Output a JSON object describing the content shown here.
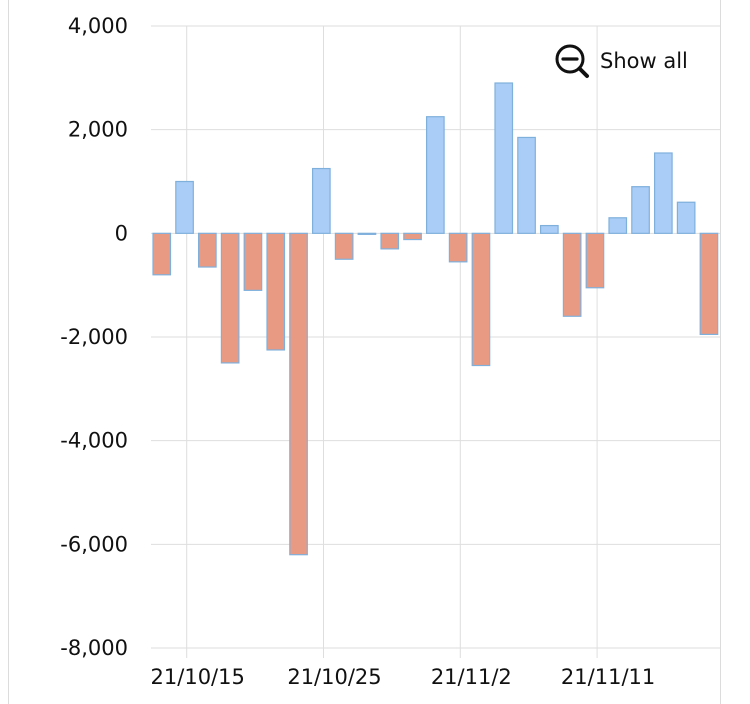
{
  "chart_data": {
    "type": "bar",
    "title": "",
    "xlabel": "",
    "ylabel": "",
    "ylim": [
      -8000,
      4000
    ],
    "y_ticks": [
      4000,
      2000,
      0,
      -2000,
      -4000,
      -6000,
      -8000
    ],
    "y_tick_labels": [
      "4,000",
      "2,000",
      "0",
      "-2,000",
      "-4,000",
      "-6,000",
      "-8,000"
    ],
    "x_ticks": [
      {
        "label": "21/10/15",
        "after_bar_index": 1
      },
      {
        "label": "21/10/25",
        "after_bar_index": 7
      },
      {
        "label": "21/11/2",
        "after_bar_index": 13
      },
      {
        "label": "21/11/11",
        "after_bar_index": 19
      }
    ],
    "values": [
      -800,
      1000,
      -650,
      -2500,
      -1100,
      -2250,
      -6200,
      1250,
      -500,
      -20,
      -300,
      -120,
      2250,
      -550,
      -2550,
      2900,
      1850,
      150,
      -1600,
      -1050,
      300,
      900,
      1550,
      600,
      -1950
    ],
    "grid": true,
    "positive_color": "#a9cdf7",
    "negative_color": "#e99a82",
    "bar_border_color": "#7fb0dc"
  },
  "controls": {
    "show_all_label": "Show all",
    "show_all_icon": "zoom-out-icon"
  }
}
